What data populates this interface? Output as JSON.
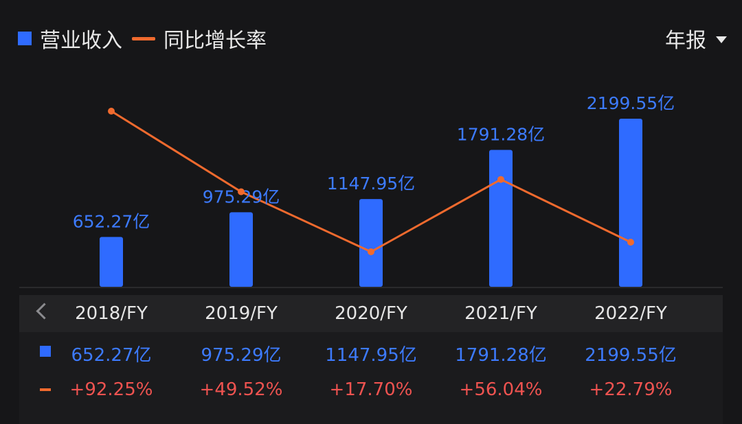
{
  "legend": {
    "revenue_label": "营业收入",
    "growth_label": "同比增长率"
  },
  "period_selector": {
    "label": "年报"
  },
  "colors": {
    "bar": "#2f6bff",
    "line": "#f06a2e",
    "growth_text": "#ef5350",
    "value_text": "#3d7bff"
  },
  "chart_data": {
    "type": "bar",
    "categories": [
      "2018/FY",
      "2019/FY",
      "2020/FY",
      "2021/FY",
      "2022/FY"
    ],
    "series": [
      {
        "name": "营业收入",
        "type": "bar",
        "values": [
          652.27,
          975.29,
          1147.95,
          1791.28,
          2199.55
        ],
        "labels": [
          "652.27亿",
          "975.29亿",
          "1147.95亿",
          "1791.28亿",
          "2199.55亿"
        ]
      },
      {
        "name": "同比增长率",
        "type": "line",
        "values": [
          92.25,
          49.52,
          17.7,
          56.04,
          22.79
        ],
        "labels": [
          "+92.25%",
          "+49.52%",
          "+17.70%",
          "+56.04%",
          "+22.79%"
        ]
      }
    ],
    "legend": "top-left",
    "grid": false
  }
}
